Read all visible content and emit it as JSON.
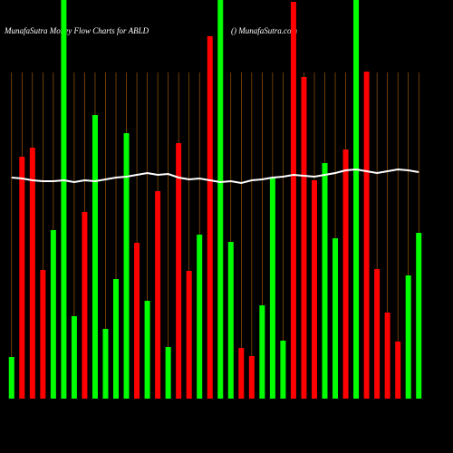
{
  "chart_data": {
    "type": "bar",
    "title": "MunafaSutra  Money Flow  Charts for ABLD",
    "subtitle": "() MunafaSutra.com",
    "values": [
      46,
      267,
      277,
      142,
      186,
      440,
      91,
      206,
      313,
      77,
      132,
      293,
      172,
      108,
      229,
      57,
      282,
      141,
      181,
      400,
      440,
      173,
      56,
      47,
      103,
      244,
      64,
      438,
      355,
      241,
      260,
      177,
      275,
      440,
      361,
      143,
      95,
      63,
      136,
      183
    ],
    "colors": [
      "#00ff00",
      "#ff0000",
      "#ff0000",
      "#ff0000",
      "#00ff00",
      "#00ff00",
      "#00ff00",
      "#ff0000",
      "#00ff00",
      "#00ff00",
      "#00ff00",
      "#00ff00",
      "#ff0000",
      "#00ff00",
      "#ff0000",
      "#00ff00",
      "#ff0000",
      "#ff0000",
      "#00ff00",
      "#ff0000",
      "#00ff00",
      "#00ff00",
      "#ff0000",
      "#ff0000",
      "#00ff00",
      "#00ff00",
      "#00ff00",
      "#ff0000",
      "#ff0000",
      "#ff0000",
      "#00ff00",
      "#00ff00",
      "#ff0000",
      "#00ff00",
      "#ff0000",
      "#ff0000",
      "#ff0000",
      "#ff0000",
      "#00ff00",
      "#00ff00"
    ],
    "line": {
      "color": "#ffffff",
      "values": [
        244,
        243,
        241,
        240,
        240,
        241,
        239,
        241,
        240,
        242,
        244,
        245,
        247,
        249,
        247,
        248,
        244,
        242,
        243,
        241,
        239,
        240,
        238,
        241,
        242,
        244,
        245,
        247,
        246,
        245,
        247,
        249,
        252,
        253,
        251,
        249,
        251,
        253,
        252,
        250
      ]
    },
    "ylim": [
      0,
      440
    ],
    "grid": true,
    "grid_color": "#b8650a"
  }
}
